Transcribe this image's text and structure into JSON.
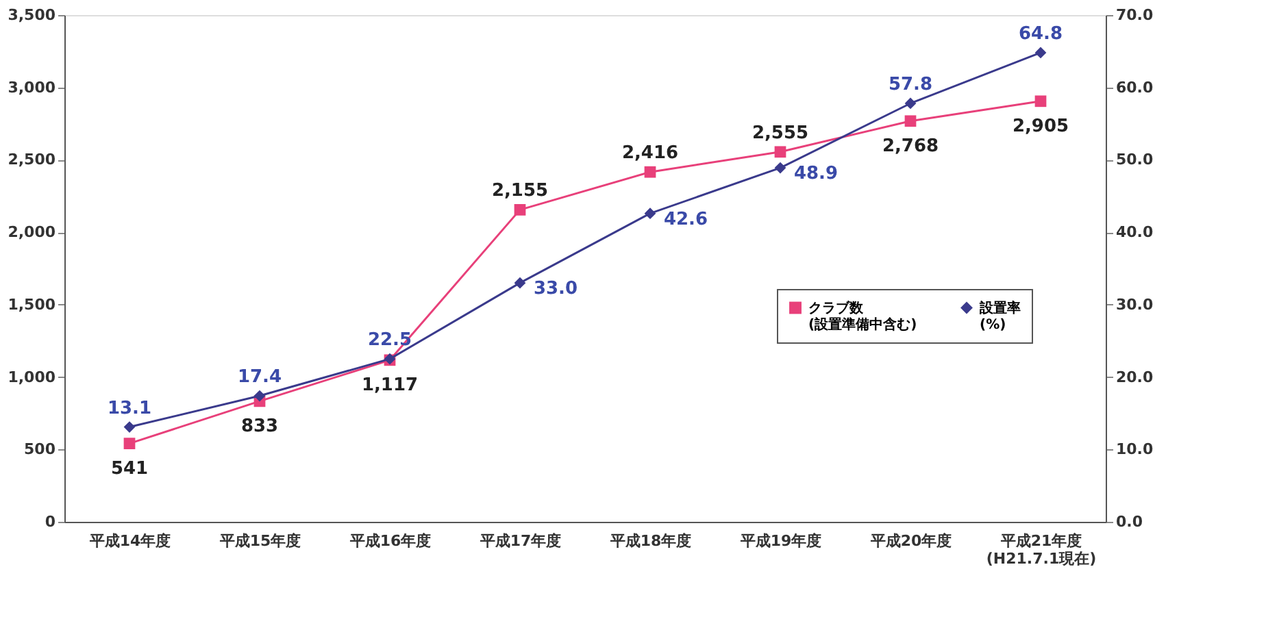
{
  "chart_data": {
    "type": "line",
    "categories": [
      "平成14年度",
      "平成15年度",
      "平成16年度",
      "平成17年度",
      "平成18年度",
      "平成19年度",
      "平成20年度",
      "平成21年度\n(H21.7.1現在)"
    ],
    "series": [
      {
        "name": "クラブ数\n(設置準備中含む)",
        "color": "#e8407a",
        "marker": "square",
        "values": [
          541,
          833,
          1117,
          2155,
          2416,
          2555,
          2768,
          2905
        ],
        "value_labels": [
          "541",
          "833",
          "1,117",
          "2,155",
          "2,416",
          "2,555",
          "2,768",
          "2,905"
        ]
      },
      {
        "name": "設置率\n(%)",
        "color": "#3a3a8c",
        "marker": "diamond",
        "axis": "y2",
        "values": [
          13.1,
          17.4,
          22.5,
          33.0,
          42.6,
          48.9,
          57.8,
          64.8
        ],
        "value_labels": [
          "13.1",
          "17.4",
          "22.5",
          "33.0",
          "42.6",
          "48.9",
          "57.8",
          "64.8"
        ]
      }
    ],
    "ylim": [
      0,
      3500
    ],
    "yticks": [
      0,
      {
        "value": 500,
        "label": "500"
      },
      {
        "value": 1000,
        "label": "1,000"
      },
      {
        "value": 1500,
        "label": "1,500"
      },
      {
        "value": 2000,
        "label": "2,000"
      },
      {
        "value": 2500,
        "label": "2,500"
      },
      {
        "value": 3000,
        "label": "3,000"
      },
      {
        "value": 3500,
        "label": "3,500"
      }
    ],
    "y2lim": [
      0,
      70
    ],
    "y2ticks": [
      {
        "value": 0,
        "label": "0.0"
      },
      {
        "value": 10,
        "label": "10.0"
      },
      {
        "value": 20,
        "label": "20.0"
      },
      {
        "value": 30,
        "label": "30.0"
      },
      {
        "value": 40,
        "label": "40.0"
      },
      {
        "value": 50,
        "label": "50.0"
      },
      {
        "value": 60,
        "label": "60.0"
      },
      {
        "value": 70,
        "label": "70.0"
      }
    ],
    "grid": false,
    "legend": "right",
    "line_style": "solid"
  }
}
